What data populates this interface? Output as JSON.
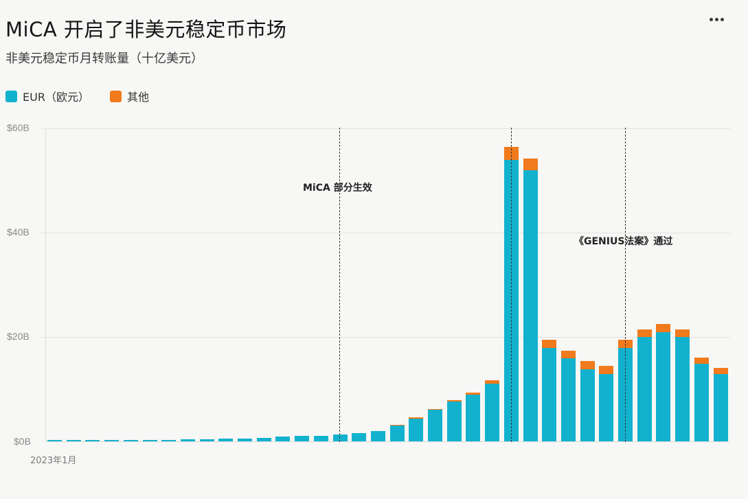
{
  "header": {
    "title": "MiCA 开启了非美元稳定币市场",
    "subtitle": "非美元稳定币月转账量（十亿美元）",
    "more_icon": "ellipsis-icon"
  },
  "legend": [
    {
      "label": "EUR（欧元）",
      "color": "#12b2cf"
    },
    {
      "label": "其他",
      "color": "#f07a1c"
    }
  ],
  "axis": {
    "y_ticks": [
      "$0B",
      "$20B",
      "$40B",
      "$60B"
    ],
    "x_first_label": "2023年1月"
  },
  "annotations": [
    {
      "label": "MiCA 部分生效",
      "bar_index": 15
    },
    {
      "label": "《GENIUS法案》通过",
      "bar_index": 30
    }
  ],
  "chart_data": {
    "type": "bar",
    "stacked": true,
    "title": "MiCA 开启了非美元稳定币市场",
    "subtitle": "非美元稳定币月转账量（十亿美元）",
    "xlabel": "",
    "ylabel": "",
    "ylim": [
      0,
      60
    ],
    "y_ticks": [
      0,
      20,
      40,
      60
    ],
    "y_tick_labels": [
      "$0B",
      "$20B",
      "$40B",
      "$60B"
    ],
    "grid": true,
    "legend_position": "top-left",
    "categories": [
      "2023-01",
      "2023-02",
      "2023-03",
      "2023-04",
      "2023-05",
      "2023-06",
      "2023-07",
      "2023-08",
      "2023-09",
      "2023-10",
      "2023-11",
      "2023-12",
      "2024-01",
      "2024-02",
      "2024-03",
      "2024-04",
      "2024-05",
      "2024-06",
      "2024-07",
      "2024-08",
      "2024-09",
      "2024-10",
      "2024-11",
      "2024-12",
      "2025-01",
      "2025-02",
      "2025-03",
      "2025-04",
      "2025-05",
      "2025-06",
      "2025-07",
      "2025-08",
      "2025-09",
      "2025-10",
      "2025-11",
      "2025-12"
    ],
    "x_tick_labels_shown": [
      "2023年1月"
    ],
    "series": [
      {
        "name": "EUR（欧元）",
        "color": "#12b2cf",
        "values": [
          0.2,
          0.2,
          0.2,
          0.2,
          0.3,
          0.3,
          0.3,
          0.4,
          0.4,
          0.5,
          0.5,
          0.6,
          0.9,
          1.0,
          1.1,
          1.3,
          1.6,
          2.0,
          3.0,
          4.4,
          6.0,
          7.6,
          9.0,
          11.0,
          54.0,
          52.0,
          17.9,
          15.9,
          13.8,
          12.9,
          17.9,
          20.0,
          20.9,
          20.0,
          14.9,
          12.9
        ]
      },
      {
        "name": "其他",
        "color": "#f07a1c",
        "values": [
          0,
          0,
          0,
          0,
          0,
          0,
          0,
          0,
          0,
          0,
          0,
          0,
          0,
          0,
          0,
          0,
          0,
          0,
          0.1,
          0.2,
          0.2,
          0.3,
          0.4,
          0.7,
          2.4,
          2.2,
          1.6,
          1.5,
          1.6,
          1.6,
          1.6,
          1.4,
          1.6,
          1.4,
          1.1,
          1.2
        ]
      }
    ],
    "annotations": [
      {
        "text": "MiCA 部分生效",
        "at": "2024-04",
        "style": "dashed-vertical-line"
      },
      {
        "text": "",
        "at": "2025-01",
        "style": "dashed-vertical-line"
      },
      {
        "text": "《GENIUS法案》通过",
        "at": "2025-07",
        "style": "dashed-vertical-line"
      }
    ]
  }
}
